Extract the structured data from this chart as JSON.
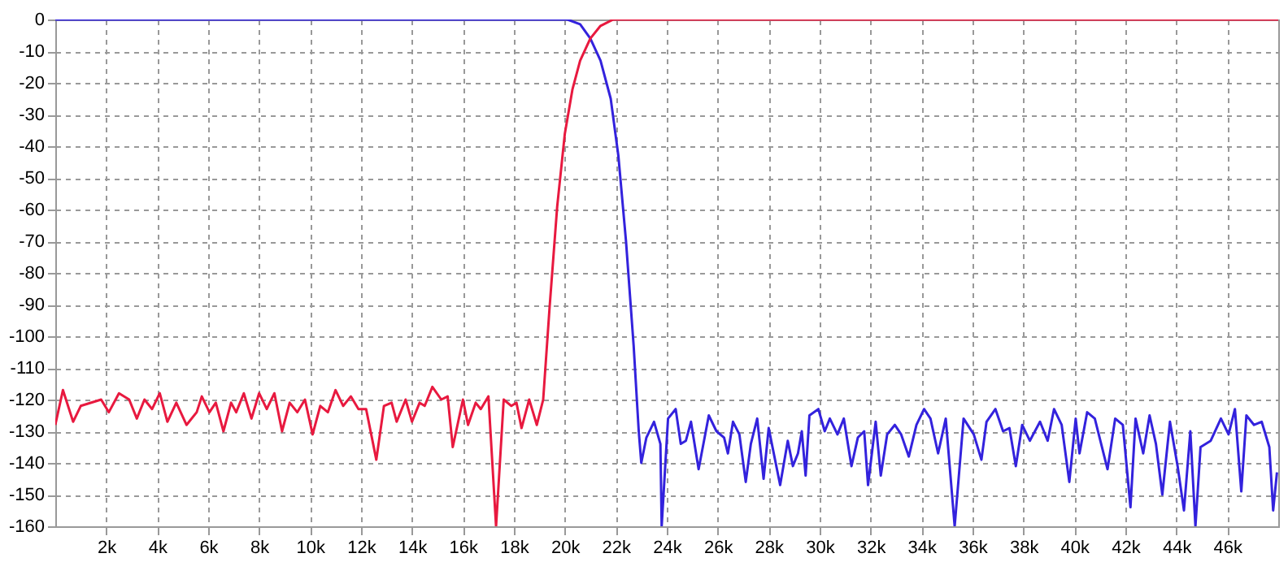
{
  "chart_data": {
    "type": "line",
    "xlim": [
      0,
      48000
    ],
    "ylim": [
      -160,
      0
    ],
    "xticks": [
      {
        "value": 2000,
        "label": "2k"
      },
      {
        "value": 4000,
        "label": "4k"
      },
      {
        "value": 6000,
        "label": "6k"
      },
      {
        "value": 8000,
        "label": "8k"
      },
      {
        "value": 10000,
        "label": "10k"
      },
      {
        "value": 12000,
        "label": "12k"
      },
      {
        "value": 14000,
        "label": "14k"
      },
      {
        "value": 16000,
        "label": "16k"
      },
      {
        "value": 18000,
        "label": "18k"
      },
      {
        "value": 20000,
        "label": "20k"
      },
      {
        "value": 22000,
        "label": "22k"
      },
      {
        "value": 24000,
        "label": "24k"
      },
      {
        "value": 26000,
        "label": "26k"
      },
      {
        "value": 28000,
        "label": "28k"
      },
      {
        "value": 30000,
        "label": "30k"
      },
      {
        "value": 32000,
        "label": "32k"
      },
      {
        "value": 34000,
        "label": "34k"
      },
      {
        "value": 36000,
        "label": "36k"
      },
      {
        "value": 38000,
        "label": "38k"
      },
      {
        "value": 40000,
        "label": "40k"
      },
      {
        "value": 42000,
        "label": "42k"
      },
      {
        "value": 44000,
        "label": "44k"
      },
      {
        "value": 46000,
        "label": "46k"
      }
    ],
    "yticks": [
      0,
      -10,
      -20,
      -30,
      -40,
      -50,
      -60,
      -70,
      -80,
      -90,
      -100,
      -110,
      -120,
      -130,
      -140,
      -150,
      -160
    ],
    "grid": true,
    "line_style": "solid",
    "marker": "none",
    "series": [
      {
        "color": "#3322dd",
        "x": [
          0,
          20100,
          20600,
          21000,
          21400,
          21800,
          22100,
          22400,
          22700,
          22900,
          23000,
          23200,
          23500,
          23750,
          23800,
          24050,
          24350,
          24550,
          24750,
          24950,
          25250,
          25650,
          25950,
          26250,
          26400,
          26600,
          26850,
          27100,
          27300,
          27550,
          27800,
          28000,
          28450,
          28750,
          28950,
          29150,
          29300,
          29450,
          29600,
          29950,
          30200,
          30400,
          30700,
          30950,
          31250,
          31500,
          31750,
          31900,
          32200,
          32400,
          32650,
          32950,
          33200,
          33500,
          33800,
          34100,
          34350,
          34650,
          34950,
          35300,
          35650,
          36050,
          36350,
          36550,
          36900,
          37200,
          37450,
          37700,
          37950,
          38250,
          38650,
          38950,
          39200,
          39500,
          39800,
          40050,
          40200,
          40500,
          40800,
          41300,
          41600,
          41900,
          42200,
          42400,
          42700,
          42950,
          43200,
          43450,
          43750,
          44050,
          44300,
          44550,
          44750,
          44950,
          45350,
          45750,
          46050,
          46300,
          46550,
          46750,
          47050,
          47350,
          47650,
          47800,
          47950
        ],
        "values": [
          0,
          0,
          -1.5,
          -6,
          -13,
          -25,
          -43,
          -70,
          -103,
          -130,
          -140,
          -132,
          -127,
          -134,
          -160,
          -126,
          -123,
          -134,
          -133,
          -127,
          -142,
          -125,
          -130,
          -132,
          -137,
          -127,
          -131,
          -146,
          -134,
          -126,
          -145,
          -129,
          -147,
          -133,
          -141,
          -137,
          -130,
          -144,
          -125,
          -123,
          -130,
          -126,
          -131,
          -126,
          -141,
          -132,
          -130,
          -147,
          -127,
          -144,
          -131,
          -128,
          -131,
          -138,
          -128,
          -123,
          -126,
          -137,
          -126,
          -160,
          -126,
          -131,
          -139,
          -127,
          -123,
          -130,
          -129,
          -141,
          -128,
          -133,
          -127,
          -133,
          -123,
          -128,
          -146,
          -126,
          -137,
          -124,
          -126,
          -142,
          -126,
          -128,
          -154,
          -126,
          -137,
          -125,
          -134,
          -150,
          -127,
          -141,
          -155,
          -130,
          -160,
          -135,
          -133,
          -126,
          -131,
          -123,
          -149,
          -125,
          -128,
          -127,
          -135,
          -155,
          -143
        ]
      },
      {
        "color": "#e8193f",
        "x": [
          0,
          300,
          700,
          1000,
          1800,
          2100,
          2500,
          2900,
          3200,
          3500,
          3800,
          4100,
          4400,
          4750,
          5150,
          5550,
          5750,
          6050,
          6300,
          6600,
          6900,
          7100,
          7400,
          7700,
          8000,
          8300,
          8600,
          8900,
          9200,
          9500,
          9800,
          10100,
          10400,
          10700,
          11000,
          11300,
          11600,
          11900,
          12200,
          12600,
          12900,
          13200,
          13400,
          13750,
          14000,
          14300,
          14500,
          14800,
          15150,
          15400,
          15600,
          16000,
          16200,
          16500,
          16700,
          17000,
          17300,
          17600,
          17900,
          18100,
          18300,
          18600,
          18900,
          19150,
          19400,
          19700,
          20000,
          20300,
          20600,
          21000,
          21400,
          21900,
          48000
        ],
        "values": [
          -128,
          -117,
          -127,
          -122,
          -120,
          -124,
          -118,
          -120,
          -126,
          -120,
          -123,
          -118,
          -127,
          -121,
          -128,
          -124,
          -119,
          -124,
          -121,
          -130,
          -121,
          -124,
          -118,
          -126,
          -118,
          -123,
          -118,
          -130,
          -121,
          -124,
          -120,
          -131,
          -122,
          -124,
          -117,
          -122,
          -119,
          -123,
          -123,
          -139,
          -122,
          -121,
          -127,
          -120,
          -127,
          -121,
          -122,
          -116,
          -120,
          -119,
          -135,
          -120,
          -128,
          -121,
          -123,
          -119,
          -160,
          -120,
          -122,
          -121,
          -129,
          -120,
          -128,
          -120,
          -91,
          -59,
          -36,
          -22,
          -13,
          -6,
          -2,
          0,
          0
        ]
      }
    ]
  }
}
